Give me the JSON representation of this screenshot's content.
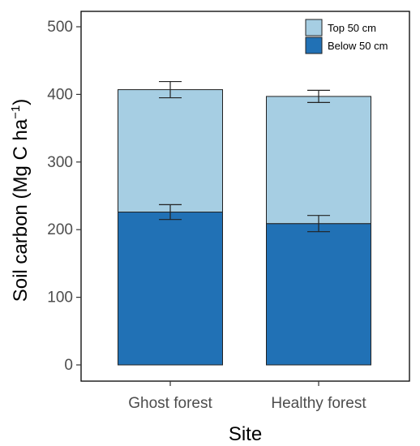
{
  "chart_data": {
    "type": "bar",
    "stacked": true,
    "title": "",
    "xlabel": "Site",
    "ylabel": "Soil carbon (Mg C ha",
    "ylabel_superscript": "−1",
    "ylabel_close": ")",
    "categories": [
      "Ghost forest",
      "Healthy forest"
    ],
    "ylim": [
      0,
      520
    ],
    "yticks": [
      0,
      100,
      200,
      300,
      400,
      500
    ],
    "grid": false,
    "legend_position": "top-right",
    "series": [
      {
        "name": "Below 50 cm",
        "color": "#2171b5",
        "values": [
          226,
          209
        ],
        "error": [
          11,
          12
        ]
      },
      {
        "name": "Top 50 cm",
        "color": "#a6cee3",
        "values": [
          181,
          188
        ],
        "error": [
          12,
          9
        ]
      }
    ],
    "legend_order": [
      1,
      0
    ]
  }
}
